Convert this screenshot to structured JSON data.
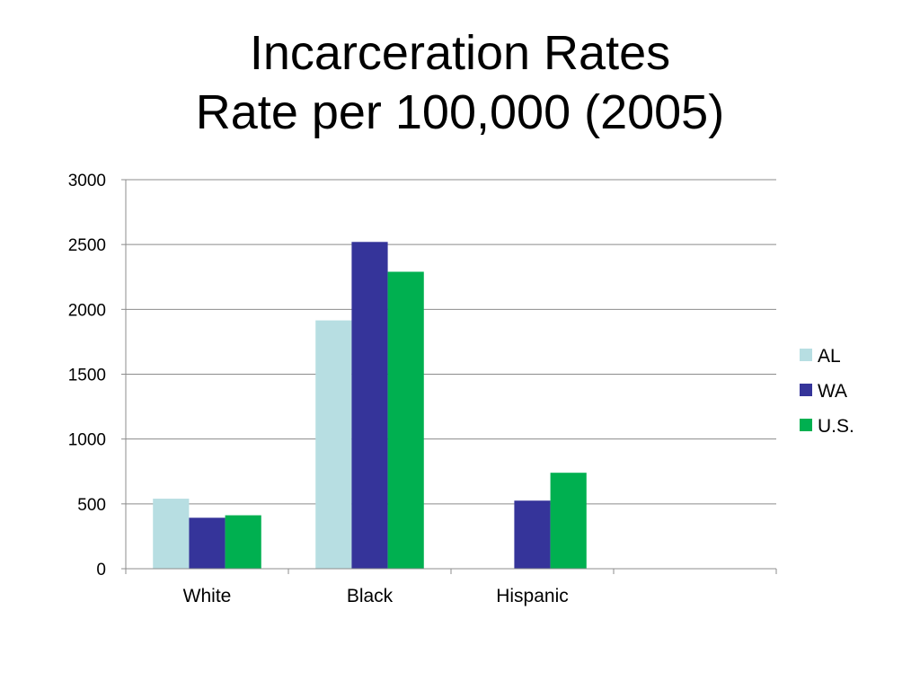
{
  "slide": {
    "title_line1": "Incarceration Rates",
    "title_line2": "Rate per 100,000 (2005)"
  },
  "chart_data": {
    "type": "bar",
    "title": "Incarceration Rates Rate per 100,000 (2005)",
    "categories": [
      "White",
      "Black",
      "Hispanic",
      ""
    ],
    "series": [
      {
        "name": "AL",
        "color": "#b7dee2",
        "values": [
          540,
          1915,
          null,
          null
        ]
      },
      {
        "name": "WA",
        "color": "#35349a",
        "values": [
          393,
          2520,
          525,
          null
        ]
      },
      {
        "name": "U.S.",
        "color": "#00b050",
        "values": [
          412,
          2290,
          740,
          null
        ]
      }
    ],
    "ylim": [
      0,
      3000
    ],
    "yticks": [
      0,
      500,
      1000,
      1500,
      2000,
      2500,
      3000
    ],
    "grid": true,
    "legend_position": "right",
    "xlabel": "",
    "ylabel": ""
  }
}
